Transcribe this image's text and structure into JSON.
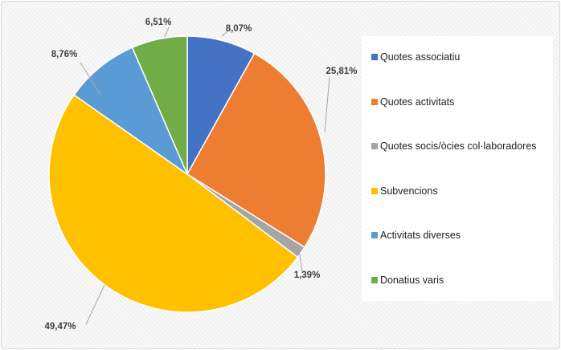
{
  "chart_data": {
    "type": "pie",
    "title": "",
    "legend_position": "right",
    "slices": [
      {
        "name": "Quotes associatiu",
        "value": 8.07,
        "label": "8,07%",
        "color": "#4472c4"
      },
      {
        "name": "Quotes activitats",
        "value": 25.81,
        "label": "25,81%",
        "color": "#ed7d31"
      },
      {
        "name": "Quotes socis/òcies col·laboradores",
        "value": 1.39,
        "label": "1,39%",
        "color": "#a5a5a5"
      },
      {
        "name": "Subvencions",
        "value": 49.47,
        "label": "49,47%",
        "color": "#ffc000"
      },
      {
        "name": "Activitats diverses",
        "value": 8.76,
        "label": "8,76%",
        "color": "#5b9bd5"
      },
      {
        "name": "Donatius varis",
        "value": 6.51,
        "label": "6,51%",
        "color": "#70ad47"
      }
    ]
  }
}
